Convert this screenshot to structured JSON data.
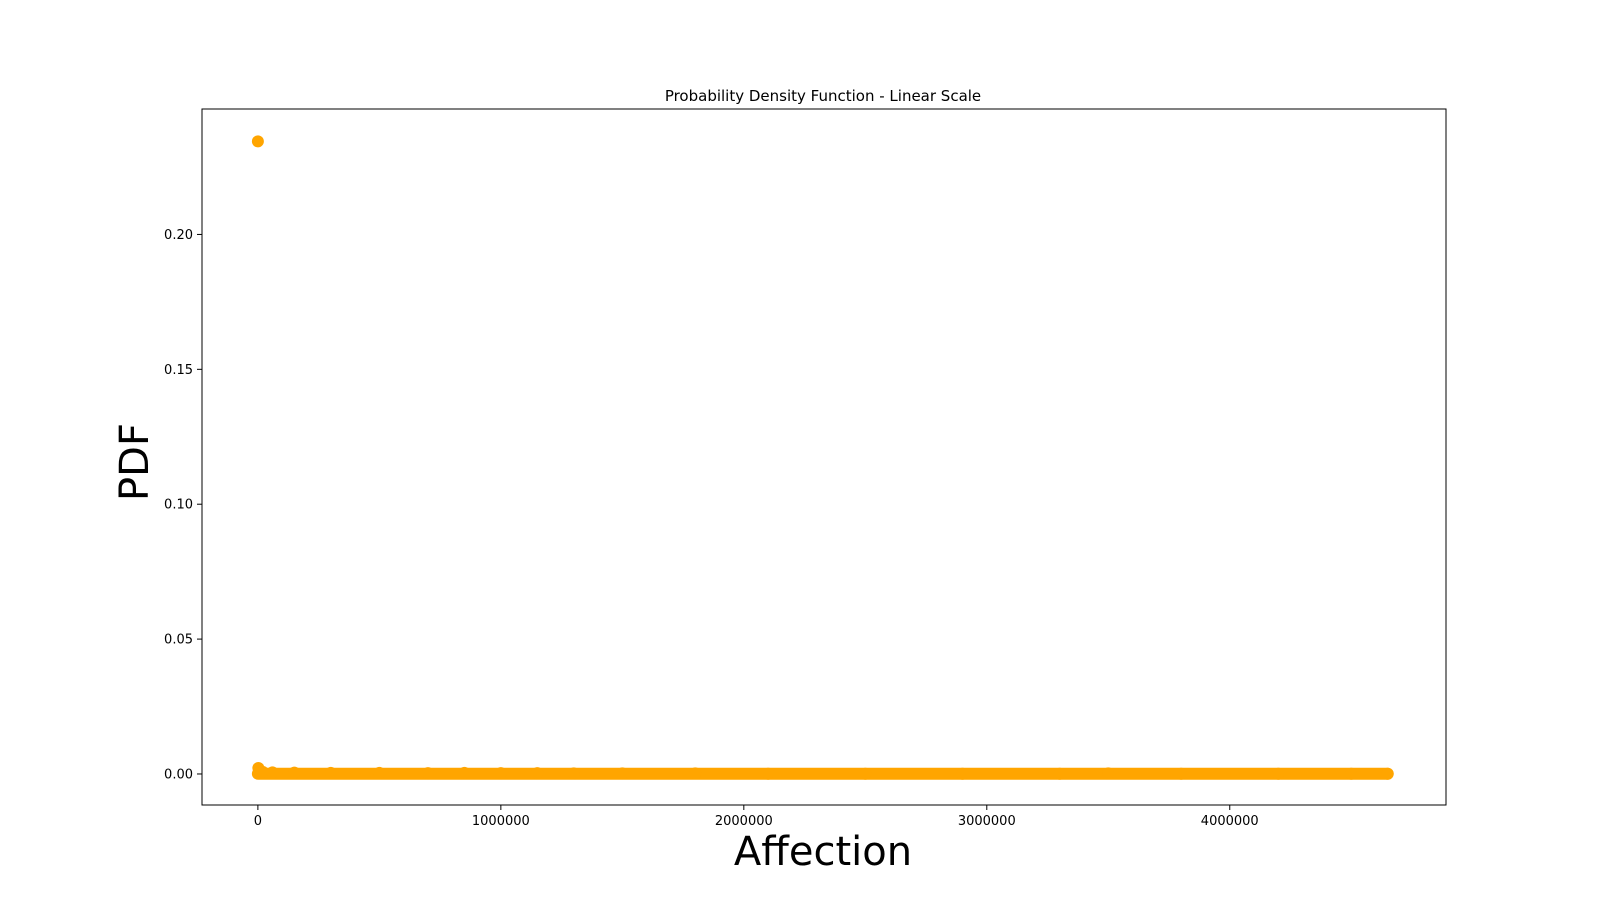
{
  "chart_data": {
    "type": "scatter",
    "title": "Probability Density Function - Linear Scale",
    "xlabel": "Affection",
    "ylabel": "PDF",
    "xlim": [
      -230000,
      4890000
    ],
    "ylim": [
      -0.0115,
      0.2465
    ],
    "xticks": [
      {
        "value": 0,
        "label": "0"
      },
      {
        "value": 1000000,
        "label": "1000000"
      },
      {
        "value": 2000000,
        "label": "2000000"
      },
      {
        "value": 3000000,
        "label": "3000000"
      },
      {
        "value": 4000000,
        "label": "4000000"
      }
    ],
    "yticks": [
      {
        "value": 0.0,
        "label": "0.00"
      },
      {
        "value": 0.05,
        "label": "0.05"
      },
      {
        "value": 0.1,
        "label": "0.10"
      },
      {
        "value": 0.15,
        "label": "0.15"
      },
      {
        "value": 0.2,
        "label": "0.20"
      }
    ],
    "grid": false,
    "marker_color": "#FFA500",
    "series": [
      {
        "points": [
          {
            "x": 0,
            "y": 0.2345
          },
          {
            "x": 2000,
            "y": 0.0022
          },
          {
            "x": 5000,
            "y": 0.0012
          },
          {
            "x": 20000,
            "y": 0.0008
          },
          {
            "x": 60000,
            "y": 0.0006
          },
          {
            "x": 150000,
            "y": 0.0005
          },
          {
            "x": 300000,
            "y": 0.0004
          },
          {
            "x": 500000,
            "y": 0.0004
          },
          {
            "x": 700000,
            "y": 0.0003
          },
          {
            "x": 850000,
            "y": 0.0004
          },
          {
            "x": 1000000,
            "y": 0.0003
          },
          {
            "x": 1150000,
            "y": 0.0003
          },
          {
            "x": 1300000,
            "y": 0.0002
          },
          {
            "x": 1500000,
            "y": 0.0002
          },
          {
            "x": 1800000,
            "y": 0.0002
          },
          {
            "x": 2100000,
            "y": 0.0001
          },
          {
            "x": 2500000,
            "y": 0.0001
          },
          {
            "x": 2900000,
            "y": 0.0001
          },
          {
            "x": 3300000,
            "y": 0.0001
          },
          {
            "x": 3500000,
            "y": 0.0002
          },
          {
            "x": 3800000,
            "y": 0.0001
          },
          {
            "x": 4200000,
            "y": 0.0001
          },
          {
            "x": 4500000,
            "y": 0.0001
          },
          {
            "x": 4650000,
            "y": 0.0001
          }
        ],
        "dense_band": {
          "x_min": 0,
          "x_max": 4650000,
          "y": 0.0001
        }
      }
    ]
  }
}
